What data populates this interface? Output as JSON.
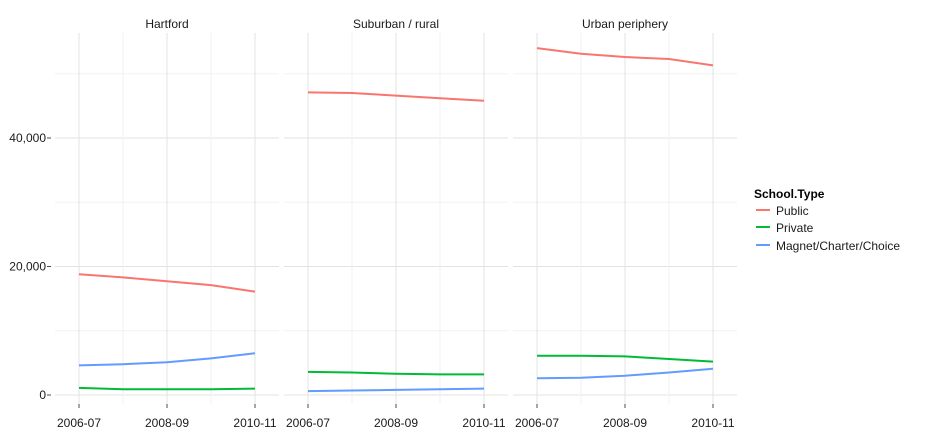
{
  "chart_data": {
    "type": "line",
    "panels": [
      "Hartford",
      "Suburban / rural",
      "Urban periphery"
    ],
    "x": [
      "2006-07",
      "2007-08",
      "2008-09",
      "2009-10",
      "2010-11"
    ],
    "x_tick_labels": [
      "2006-07",
      "2008-09",
      "2010-11"
    ],
    "ylim": [
      0,
      55000
    ],
    "y_ticks": [
      0,
      20000,
      40000
    ],
    "y_tick_labels": [
      "0",
      "20,000",
      "40,000"
    ],
    "legend": {
      "title": "School.Type",
      "placement": "right",
      "entries": [
        "Public",
        "Private",
        "Magnet/Charter/Choice"
      ]
    },
    "grid": true,
    "series": [
      {
        "name": "Public",
        "color": "#F8766D",
        "values": {
          "Hartford": [
            18800,
            18300,
            17700,
            17100,
            16100
          ],
          "Suburban / rural": [
            47100,
            47000,
            46600,
            46200,
            45800
          ],
          "Urban periphery": [
            54000,
            53100,
            52600,
            52300,
            51300
          ]
        }
      },
      {
        "name": "Private",
        "color": "#00BA38",
        "values": {
          "Hartford": [
            1100,
            900,
            900,
            900,
            1000
          ],
          "Suburban / rural": [
            3600,
            3500,
            3300,
            3200,
            3200
          ],
          "Urban periphery": [
            6100,
            6100,
            6000,
            5600,
            5200
          ]
        }
      },
      {
        "name": "Magnet/Charter/Choice",
        "color": "#619CFF",
        "values": {
          "Hartford": [
            4600,
            4800,
            5100,
            5700,
            6500
          ],
          "Suburban / rural": [
            600,
            700,
            800,
            900,
            1000
          ],
          "Urban periphery": [
            2600,
            2700,
            3000,
            3500,
            4100
          ]
        }
      }
    ]
  }
}
